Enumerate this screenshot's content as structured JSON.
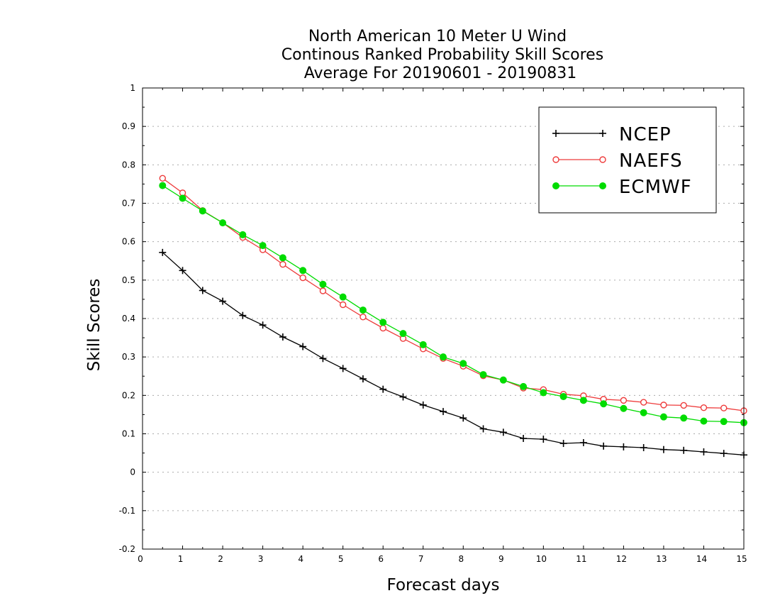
{
  "chart_data": {
    "type": "line",
    "title": [
      "North American 10 Meter U Wind",
      "Continous Ranked Probability Skill Scores",
      "Average For 20190601 - 20190831"
    ],
    "xlabel": "Forecast days",
    "ylabel": "Skill Scores",
    "xlim": [
      0,
      15
    ],
    "ylim": [
      -0.2,
      1
    ],
    "xticks": [
      0,
      1,
      2,
      3,
      4,
      5,
      6,
      7,
      8,
      9,
      10,
      11,
      12,
      13,
      14,
      15
    ],
    "yticks": [
      -0.2,
      -0.1,
      0,
      0.1,
      0.2,
      0.3,
      0.4,
      0.5,
      0.6,
      0.7,
      0.8,
      0.9,
      1
    ],
    "ytick_labels": [
      "-0.2",
      "-0.1",
      "0",
      "0.1",
      "0.2",
      "0.3",
      "0.4",
      "0.5",
      "0.6",
      "0.7",
      "0.8",
      "0.9",
      "1"
    ],
    "grid": "horizontal dotted",
    "legend_position": "top-right",
    "x": [
      0.5,
      1,
      1.5,
      2,
      2.5,
      3,
      3.5,
      4,
      4.5,
      5,
      5.5,
      6,
      6.5,
      7,
      7.5,
      8,
      8.5,
      9,
      9.5,
      10,
      10.5,
      11,
      11.5,
      12,
      12.5,
      13,
      13.5,
      14,
      14.5,
      15
    ],
    "series": [
      {
        "name": "NCEP",
        "color": "#000000",
        "marker": "plus",
        "values": [
          0.572,
          0.525,
          0.473,
          0.445,
          0.408,
          0.383,
          0.352,
          0.327,
          0.296,
          0.27,
          0.243,
          0.216,
          0.196,
          0.175,
          0.158,
          0.141,
          0.113,
          0.104,
          0.088,
          0.086,
          0.075,
          0.077,
          0.068,
          0.066,
          0.064,
          0.059,
          0.057,
          0.053,
          0.049,
          0.045
        ]
      },
      {
        "name": "NAEFS",
        "color": "#ee3b3b",
        "marker": "open-circle",
        "values": [
          0.765,
          0.727,
          0.681,
          0.649,
          0.611,
          0.579,
          0.541,
          0.506,
          0.472,
          0.436,
          0.404,
          0.375,
          0.348,
          0.321,
          0.296,
          0.276,
          0.251,
          0.24,
          0.219,
          0.215,
          0.203,
          0.199,
          0.19,
          0.187,
          0.182,
          0.175,
          0.174,
          0.168,
          0.167,
          0.16
        ]
      },
      {
        "name": "ECMWF",
        "color": "#00dc00",
        "marker": "filled-circle",
        "values": [
          0.746,
          0.713,
          0.68,
          0.649,
          0.618,
          0.59,
          0.558,
          0.525,
          0.489,
          0.456,
          0.422,
          0.39,
          0.361,
          0.332,
          0.3,
          0.283,
          0.254,
          0.24,
          0.223,
          0.207,
          0.197,
          0.187,
          0.178,
          0.166,
          0.155,
          0.144,
          0.141,
          0.133,
          0.132,
          0.129
        ]
      }
    ]
  }
}
